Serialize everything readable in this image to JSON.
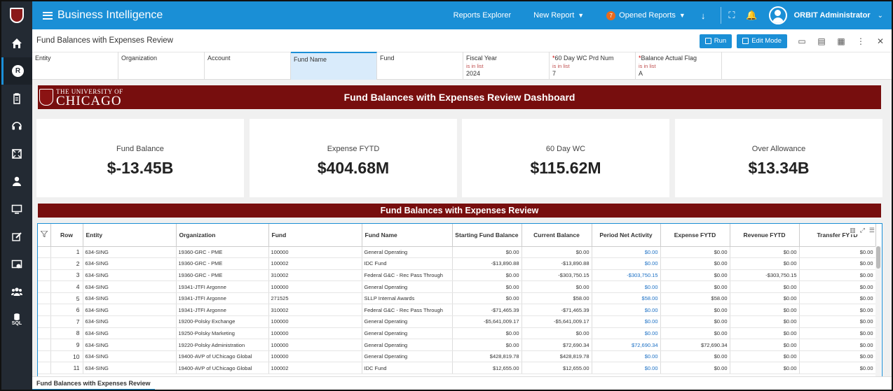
{
  "topbar": {
    "title": "Business Intelligence",
    "reports_explorer": "Reports Explorer",
    "new_report": "New Report",
    "opened_reports": "Opened Reports",
    "opened_count": "7",
    "user": "ORBIT Administrator",
    "accent": "#1a8fd6"
  },
  "sidebar": {
    "items": [
      "home-icon",
      "reports-icon",
      "clipboard-icon",
      "headset-icon",
      "frame-icon",
      "user-icon",
      "monitor-icon",
      "edit-icon",
      "dashboard-icon",
      "users-icon",
      "sql-icon"
    ],
    "report_letter": "R",
    "sql_label": "SQL"
  },
  "report": {
    "title": "Fund Balances with Expenses Review",
    "run": "Run",
    "edit_mode": "Edit Mode"
  },
  "filters": [
    {
      "label": "Entity",
      "required": false,
      "sub": "",
      "value": ""
    },
    {
      "label": "Organization",
      "required": false,
      "sub": "",
      "value": ""
    },
    {
      "label": "Account",
      "required": false,
      "sub": "",
      "value": ""
    },
    {
      "label": "Fund Name",
      "required": false,
      "sub": "",
      "value": ""
    },
    {
      "label": "Fund",
      "required": false,
      "sub": "",
      "value": ""
    },
    {
      "label": "Fiscal Year",
      "required": false,
      "sub": "is in list",
      "value": "2024"
    },
    {
      "label": "60 Day WC Prd Num",
      "required": true,
      "sub": "is in list",
      "value": "7"
    },
    {
      "label": "Balance Actual Flag",
      "required": true,
      "sub": "is in list",
      "value": "A"
    }
  ],
  "dashboard": {
    "logo_small": "THE UNIVERSITY OF",
    "logo_big": "CHICAGO",
    "title": "Fund Balances with Expenses Review Dashboard",
    "brand_color": "#770e0e",
    "cards": [
      {
        "label": "Fund Balance",
        "value": "$-13.45B"
      },
      {
        "label": "Expense FYTD",
        "value": "$404.68M"
      },
      {
        "label": "60 Day WC",
        "value": "$115.62M"
      },
      {
        "label": "Over Allowance",
        "value": "$13.34B"
      }
    ],
    "table_title": "Fund Balances with Expenses Review"
  },
  "table": {
    "headers": [
      "Row",
      "Entity",
      "Organization",
      "Fund",
      "Fund Name",
      "Starting Fund Balance",
      "Current Balance",
      "Period Net Activity",
      "Expense FYTD",
      "Revenue FYTD",
      "Transfer FYTD"
    ],
    "rows": [
      [
        "1",
        "634-SING",
        "19360-GRC - PME",
        "100000",
        "General Operating",
        "$0.00",
        "$0.00",
        "$0.00",
        "$0.00",
        "$0.00",
        "$0.00"
      ],
      [
        "2",
        "634-SING",
        "19360-GRC - PME",
        "100002",
        "IDC Fund",
        "-$13,890.88",
        "-$13,890.88",
        "$0.00",
        "$0.00",
        "$0.00",
        "$0.00"
      ],
      [
        "3",
        "634-SING",
        "19360-GRC - PME",
        "310002",
        "Federal G&C - Rec Pass Through",
        "$0.00",
        "-$303,750.15",
        "-$303,750.15",
        "$0.00",
        "-$303,750.15",
        "$0.00"
      ],
      [
        "4",
        "634-SING",
        "19341-JTFI Argonne",
        "100000",
        "General Operating",
        "$0.00",
        "$0.00",
        "$0.00",
        "$0.00",
        "$0.00",
        "$0.00"
      ],
      [
        "5",
        "634-SING",
        "19341-JTFI Argonne",
        "271525",
        "SLLP Internal Awards",
        "$0.00",
        "$58.00",
        "$58.00",
        "$58.00",
        "$0.00",
        "$0.00"
      ],
      [
        "6",
        "634-SING",
        "19341-JTFI Argonne",
        "310002",
        "Federal G&C - Rec Pass Through",
        "-$71,465.39",
        "-$71,465.39",
        "$0.00",
        "$0.00",
        "$0.00",
        "$0.00"
      ],
      [
        "7",
        "634-SING",
        "19200-Polsky Exchange",
        "100000",
        "General Operating",
        "-$5,641,009.17",
        "-$5,641,009.17",
        "$0.00",
        "$0.00",
        "$0.00",
        "$0.00"
      ],
      [
        "8",
        "634-SING",
        "19250-Polsky Marketing",
        "100000",
        "General Operating",
        "$0.00",
        "$0.00",
        "$0.00",
        "$0.00",
        "$0.00",
        "$0.00"
      ],
      [
        "9",
        "634-SING",
        "19220-Polsky Administration",
        "100000",
        "General Operating",
        "$0.00",
        "$72,690.34",
        "$72,690.34",
        "$72,690.34",
        "$0.00",
        "$0.00"
      ],
      [
        "10",
        "634-SING",
        "19400-AVP of UChicago Global",
        "100000",
        "General Operating",
        "$428,819.78",
        "$428,819.78",
        "$0.00",
        "$0.00",
        "$0.00",
        "$0.00"
      ],
      [
        "11",
        "634-SING",
        "19400-AVP of UChicago Global",
        "100002",
        "IDC Fund",
        "$12,655.00",
        "$12,655.00",
        "$0.00",
        "$0.00",
        "$0.00",
        "$0.00"
      ]
    ]
  },
  "tabs": [
    {
      "label": "Fund Balances with Expenses Review"
    }
  ]
}
